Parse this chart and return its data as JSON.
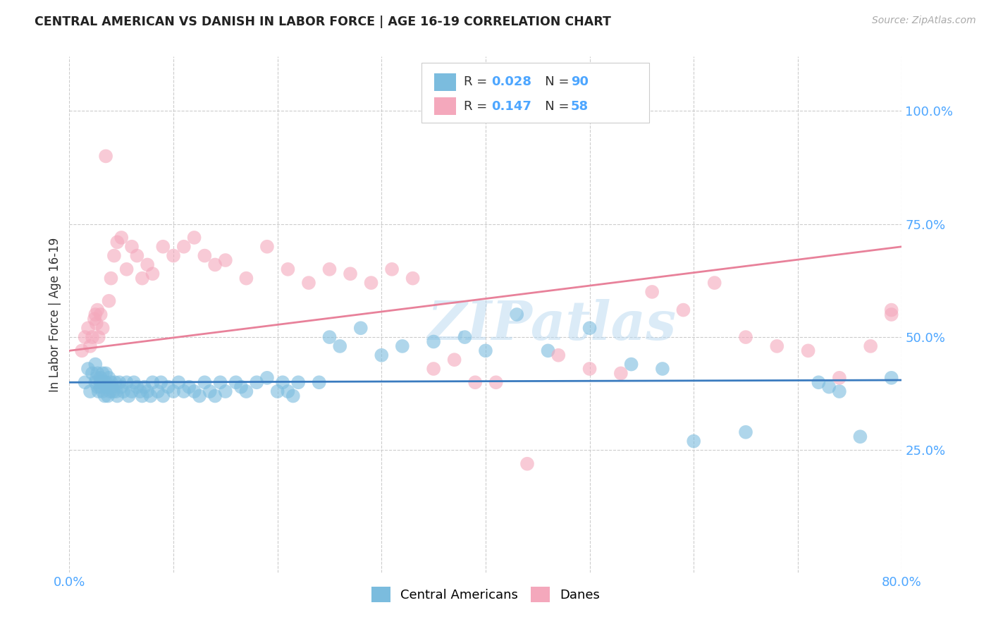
{
  "title": "CENTRAL AMERICAN VS DANISH IN LABOR FORCE | AGE 16-19 CORRELATION CHART",
  "source": "Source: ZipAtlas.com",
  "ylabel": "In Labor Force | Age 16-19",
  "xlim": [
    0.0,
    0.8
  ],
  "ylim": [
    -0.02,
    1.12
  ],
  "yticks": [
    0.25,
    0.5,
    0.75,
    1.0
  ],
  "ytick_labels": [
    "25.0%",
    "50.0%",
    "75.0%",
    "100.0%"
  ],
  "xtick_positions": [
    0.0,
    0.1,
    0.2,
    0.3,
    0.4,
    0.5,
    0.6,
    0.7,
    0.8
  ],
  "xtick_labels": [
    "0.0%",
    "",
    "",
    "",
    "",
    "",
    "",
    "",
    "80.0%"
  ],
  "blue_color": "#7bbcde",
  "pink_color": "#f4a8bc",
  "blue_line_color": "#3a7bbf",
  "pink_line_color": "#e8819a",
  "legend_R_blue": "0.028",
  "legend_N_blue": "90",
  "legend_R_pink": "0.147",
  "legend_N_pink": "58",
  "watermark": "ZIPatlas",
  "blue_scatter_x": [
    0.015,
    0.018,
    0.02,
    0.022,
    0.025,
    0.025,
    0.026,
    0.027,
    0.027,
    0.028,
    0.03,
    0.03,
    0.03,
    0.031,
    0.032,
    0.032,
    0.033,
    0.034,
    0.035,
    0.035,
    0.036,
    0.037,
    0.038,
    0.039,
    0.04,
    0.041,
    0.042,
    0.044,
    0.045,
    0.046,
    0.048,
    0.05,
    0.052,
    0.055,
    0.057,
    0.06,
    0.062,
    0.065,
    0.068,
    0.07,
    0.072,
    0.075,
    0.078,
    0.08,
    0.085,
    0.088,
    0.09,
    0.095,
    0.1,
    0.105,
    0.11,
    0.115,
    0.12,
    0.125,
    0.13,
    0.135,
    0.14,
    0.145,
    0.15,
    0.16,
    0.165,
    0.17,
    0.18,
    0.19,
    0.2,
    0.205,
    0.21,
    0.215,
    0.22,
    0.24,
    0.25,
    0.26,
    0.28,
    0.3,
    0.32,
    0.35,
    0.38,
    0.4,
    0.43,
    0.46,
    0.5,
    0.54,
    0.57,
    0.6,
    0.65,
    0.72,
    0.73,
    0.74,
    0.76,
    0.79
  ],
  "blue_scatter_y": [
    0.4,
    0.43,
    0.38,
    0.42,
    0.4,
    0.44,
    0.41,
    0.39,
    0.42,
    0.38,
    0.4,
    0.41,
    0.39,
    0.4,
    0.38,
    0.42,
    0.4,
    0.37,
    0.4,
    0.42,
    0.39,
    0.37,
    0.41,
    0.38,
    0.4,
    0.39,
    0.38,
    0.4,
    0.38,
    0.37,
    0.4,
    0.39,
    0.38,
    0.4,
    0.37,
    0.38,
    0.4,
    0.39,
    0.38,
    0.37,
    0.39,
    0.38,
    0.37,
    0.4,
    0.38,
    0.4,
    0.37,
    0.39,
    0.38,
    0.4,
    0.38,
    0.39,
    0.38,
    0.37,
    0.4,
    0.38,
    0.37,
    0.4,
    0.38,
    0.4,
    0.39,
    0.38,
    0.4,
    0.41,
    0.38,
    0.4,
    0.38,
    0.37,
    0.4,
    0.4,
    0.5,
    0.48,
    0.52,
    0.46,
    0.48,
    0.49,
    0.5,
    0.47,
    0.55,
    0.47,
    0.52,
    0.44,
    0.43,
    0.27,
    0.29,
    0.4,
    0.39,
    0.38,
    0.28,
    0.41
  ],
  "pink_scatter_x": [
    0.012,
    0.015,
    0.018,
    0.02,
    0.022,
    0.024,
    0.025,
    0.026,
    0.027,
    0.028,
    0.03,
    0.032,
    0.035,
    0.038,
    0.04,
    0.043,
    0.046,
    0.05,
    0.055,
    0.06,
    0.065,
    0.07,
    0.075,
    0.08,
    0.09,
    0.1,
    0.11,
    0.12,
    0.13,
    0.14,
    0.15,
    0.17,
    0.19,
    0.21,
    0.23,
    0.25,
    0.27,
    0.29,
    0.31,
    0.33,
    0.35,
    0.37,
    0.39,
    0.41,
    0.44,
    0.47,
    0.5,
    0.53,
    0.56,
    0.59,
    0.62,
    0.65,
    0.68,
    0.71,
    0.74,
    0.77,
    0.79,
    0.79
  ],
  "pink_scatter_y": [
    0.47,
    0.5,
    0.52,
    0.48,
    0.5,
    0.54,
    0.55,
    0.53,
    0.56,
    0.5,
    0.55,
    0.52,
    0.9,
    0.58,
    0.63,
    0.68,
    0.71,
    0.72,
    0.65,
    0.7,
    0.68,
    0.63,
    0.66,
    0.64,
    0.7,
    0.68,
    0.7,
    0.72,
    0.68,
    0.66,
    0.67,
    0.63,
    0.7,
    0.65,
    0.62,
    0.65,
    0.64,
    0.62,
    0.65,
    0.63,
    0.43,
    0.45,
    0.4,
    0.4,
    0.22,
    0.46,
    0.43,
    0.42,
    0.6,
    0.56,
    0.62,
    0.5,
    0.48,
    0.47,
    0.41,
    0.48,
    0.55,
    0.56
  ],
  "blue_trend_x": [
    0.0,
    0.8
  ],
  "blue_trend_y": [
    0.4,
    0.405
  ],
  "pink_trend_x": [
    0.0,
    0.8
  ],
  "pink_trend_y": [
    0.47,
    0.7
  ],
  "background_color": "#ffffff",
  "grid_color": "#cccccc",
  "tick_color": "#4da6ff"
}
